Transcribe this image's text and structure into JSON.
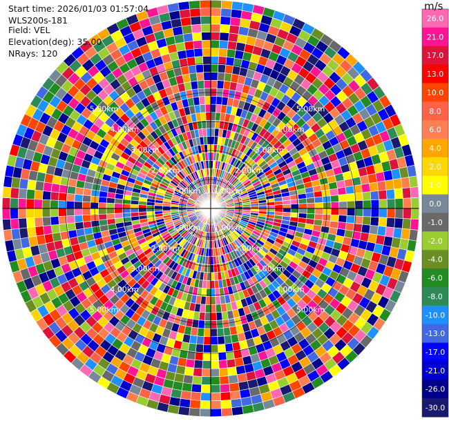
{
  "info": {
    "start_time": "Start time: 2026/01/03 01:57:04",
    "instrument": "WLS200s-181",
    "field": "Field: VEL",
    "elevation": "Elevation(deg): 35.00",
    "nrays": "NRays: 120"
  },
  "chart_data": {
    "type": "heatmap",
    "projection": "polar-ppi",
    "field": "VEL",
    "units": "m/s",
    "n_rays": 120,
    "n_gates": 26,
    "range_rings_km": [
      1,
      2,
      3,
      4,
      5
    ],
    "ring_labels": [
      "1.00km",
      "2.00km",
      "3.00km",
      "4.00km",
      "5.00km"
    ],
    "max_range_km": 7,
    "grid": true,
    "colorbar": {
      "placement": "right",
      "label": "m/s",
      "vmin": -30,
      "vmax": 30,
      "ticks": [
        "26.0",
        "21.0",
        "17.0",
        "13.0",
        "10.0",
        "8.0",
        "6.0",
        "4.0",
        "2.0",
        "1.0",
        "0.0",
        "-1.0",
        "-2.0",
        "-4.0",
        "-6.0",
        "-8.0",
        "-10.0",
        "-13.0",
        "-17.0",
        "-21.0",
        "-26.0",
        "-30.0"
      ],
      "colors": [
        "#ff69b4",
        "#ff1493",
        "#dc143c",
        "#ff0000",
        "#ff4500",
        "#ff6347",
        "#ff7f50",
        "#ffa500",
        "#ffd700",
        "#ffff00",
        "#778899",
        "#696969",
        "#9acd32",
        "#6b8e23",
        "#228b22",
        "#2e8b57",
        "#1e90ff",
        "#4169e1",
        "#0000ff",
        "#0000cd",
        "#00008b",
        "#191970"
      ]
    }
  }
}
